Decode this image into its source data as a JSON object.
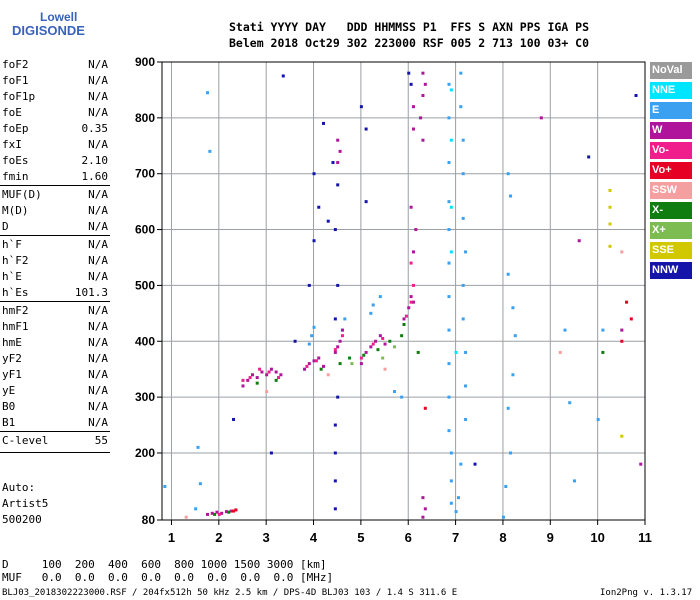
{
  "logo": {
    "line1": "Lowell",
    "line2": "DIGISONDE"
  },
  "header": {
    "line1": "Stati YYYY DAY   DDD HHMMSS P1  FFS S AXN PPS IGA PS",
    "line2": "Belem 2018 Oct29 302 223000 RSF 005 2 713 100 03+ C0"
  },
  "params": [
    {
      "name": "foF2",
      "value": "N/A"
    },
    {
      "name": "foF1",
      "value": "N/A"
    },
    {
      "name": "foF1p",
      "value": "N/A"
    },
    {
      "name": "foE",
      "value": "N/A"
    },
    {
      "name": "foEp",
      "value": "0.35"
    },
    {
      "name": "fxI",
      "value": "N/A"
    },
    {
      "name": "foEs",
      "value": "2.10"
    },
    {
      "name": "fmin",
      "value": "1.60"
    },
    {
      "name": "MUF(D)",
      "value": "N/A"
    },
    {
      "name": "M(D)",
      "value": "N/A"
    },
    {
      "name": "D",
      "value": "N/A"
    },
    {
      "name": "h`F",
      "value": "N/A"
    },
    {
      "name": "h`F2",
      "value": "N/A"
    },
    {
      "name": "h`E",
      "value": "N/A"
    },
    {
      "name": "h`Es",
      "value": "101.3"
    },
    {
      "name": "hmF2",
      "value": "N/A"
    },
    {
      "name": "hmF1",
      "value": "N/A"
    },
    {
      "name": "hmE",
      "value": "N/A"
    },
    {
      "name": "yF2",
      "value": "N/A"
    },
    {
      "name": "yF1",
      "value": "N/A"
    },
    {
      "name": "yE",
      "value": "N/A"
    },
    {
      "name": "B0",
      "value": "N/A"
    },
    {
      "name": "B1",
      "value": "N/A"
    },
    {
      "name": "C-level",
      "value": "55"
    }
  ],
  "auto": {
    "line1": "Auto:",
    "line2": "Artist5",
    "line3": "500200"
  },
  "mufTable": {
    "dLine": "D     100  200  400  600  800 1000 1500 3000 [km]",
    "mufLine": "MUF   0.0  0.0  0.0  0.0  0.0  0.0  0.0  0.0 [MHz]"
  },
  "footer": {
    "left": "BLJ03_2018302223000.RSF / 204fx512h 50 kHz 2.5 km / DPS-4D BLJ03 103 / 1.4 S 311.6 E",
    "right": "Ion2Png v. 1.3.17"
  },
  "legend": [
    {
      "label": "NoVal",
      "color": "#9a9a9a"
    },
    {
      "label": "NNE",
      "color": "#00e5ff"
    },
    {
      "label": "E",
      "color": "#3ca0f0"
    },
    {
      "label": "W",
      "color": "#b0149b"
    },
    {
      "label": "Vo-",
      "color": "#f01e8c"
    },
    {
      "label": "Vo+",
      "color": "#e60023"
    },
    {
      "label": "SSW",
      "color": "#f5a0a0"
    },
    {
      "label": "X-",
      "color": "#0f7d0f"
    },
    {
      "label": "X+",
      "color": "#7cbc50"
    },
    {
      "label": "SSE",
      "color": "#d2c800"
    },
    {
      "label": "NNW",
      "color": "#1414aa"
    }
  ],
  "chart_data": {
    "type": "scatter",
    "xlabel": "",
    "ylabel": "",
    "xlim": [
      0.8,
      11.0
    ],
    "ylim": [
      80,
      900
    ],
    "xticks": [
      1,
      2,
      3,
      4,
      5,
      6,
      7,
      8,
      9,
      10,
      11
    ],
    "yticks": [
      80,
      200,
      300,
      400,
      500,
      600,
      700,
      800,
      900
    ],
    "grid": true,
    "legend_position": "right",
    "series": [
      {
        "name": "NoVal",
        "color": "#9a9a9a",
        "points": []
      },
      {
        "name": "NNE",
        "color": "#00e5ff",
        "points": [
          [
            6.9,
            850
          ],
          [
            6.9,
            760
          ],
          [
            6.9,
            640
          ],
          [
            6.9,
            560
          ],
          [
            7.0,
            380
          ]
        ]
      },
      {
        "name": "E",
        "color": "#3ca0f0",
        "points": [
          [
            1.75,
            845
          ],
          [
            1.8,
            740
          ],
          [
            3.9,
            395
          ],
          [
            3.95,
            410
          ],
          [
            4.0,
            425
          ],
          [
            4.6,
            420
          ],
          [
            4.65,
            440
          ],
          [
            5.2,
            450
          ],
          [
            5.25,
            465
          ],
          [
            5.4,
            480
          ],
          [
            5.7,
            310
          ],
          [
            5.85,
            300
          ],
          [
            6.85,
            860
          ],
          [
            6.85,
            800
          ],
          [
            6.85,
            720
          ],
          [
            6.85,
            650
          ],
          [
            6.85,
            600
          ],
          [
            6.85,
            540
          ],
          [
            6.85,
            480
          ],
          [
            6.85,
            420
          ],
          [
            6.85,
            360
          ],
          [
            6.85,
            300
          ],
          [
            6.85,
            240
          ],
          [
            6.9,
            200
          ],
          [
            6.9,
            150
          ],
          [
            6.9,
            110
          ],
          [
            7.1,
            880
          ],
          [
            7.1,
            820
          ],
          [
            7.15,
            760
          ],
          [
            7.15,
            700
          ],
          [
            7.15,
            620
          ],
          [
            7.2,
            560
          ],
          [
            7.15,
            500
          ],
          [
            7.15,
            440
          ],
          [
            7.2,
            380
          ],
          [
            7.2,
            320
          ],
          [
            7.2,
            260
          ],
          [
            7.1,
            180
          ],
          [
            7.05,
            120
          ],
          [
            7.0,
            95
          ],
          [
            8.1,
            700
          ],
          [
            8.15,
            660
          ],
          [
            8.1,
            520
          ],
          [
            8.2,
            460
          ],
          [
            8.25,
            410
          ],
          [
            8.2,
            340
          ],
          [
            8.1,
            280
          ],
          [
            8.15,
            200
          ],
          [
            8.05,
            140
          ],
          [
            8.0,
            85
          ],
          [
            9.3,
            420
          ],
          [
            9.4,
            290
          ],
          [
            9.5,
            150
          ],
          [
            10.1,
            420
          ],
          [
            10.0,
            260
          ],
          [
            1.55,
            210
          ],
          [
            1.6,
            145
          ],
          [
            1.5,
            100
          ],
          [
            0.85,
            140
          ]
        ]
      },
      {
        "name": "W",
        "color": "#b0149b",
        "points": [
          [
            2.5,
            320
          ],
          [
            2.6,
            330
          ],
          [
            2.7,
            340
          ],
          [
            2.8,
            335
          ],
          [
            2.9,
            345
          ],
          [
            3.0,
            340
          ],
          [
            3.1,
            350
          ],
          [
            3.2,
            345
          ],
          [
            3.3,
            340
          ],
          [
            3.8,
            350
          ],
          [
            3.9,
            360
          ],
          [
            4.0,
            365
          ],
          [
            4.1,
            370
          ],
          [
            4.2,
            355
          ],
          [
            4.45,
            380
          ],
          [
            4.5,
            390
          ],
          [
            4.55,
            400
          ],
          [
            4.6,
            420
          ],
          [
            4.5,
            720
          ],
          [
            4.55,
            740
          ],
          [
            4.5,
            760
          ],
          [
            5.0,
            360
          ],
          [
            5.1,
            380
          ],
          [
            5.2,
            390
          ],
          [
            5.3,
            400
          ],
          [
            5.4,
            410
          ],
          [
            5.5,
            395
          ],
          [
            5.9,
            440
          ],
          [
            6.0,
            460
          ],
          [
            6.05,
            480
          ],
          [
            6.1,
            470
          ],
          [
            6.1,
            560
          ],
          [
            6.15,
            600
          ],
          [
            6.05,
            640
          ],
          [
            6.1,
            780
          ],
          [
            6.1,
            820
          ],
          [
            6.3,
            880
          ],
          [
            6.35,
            860
          ],
          [
            6.3,
            840
          ],
          [
            6.25,
            800
          ],
          [
            6.3,
            760
          ],
          [
            6.3,
            120
          ],
          [
            6.35,
            100
          ],
          [
            6.3,
            85
          ],
          [
            1.75,
            90
          ],
          [
            1.85,
            92
          ],
          [
            1.95,
            94
          ],
          [
            2.05,
            92
          ],
          [
            2.15,
            95
          ],
          [
            2.25,
            96
          ],
          [
            8.8,
            800
          ],
          [
            9.6,
            580
          ],
          [
            10.5,
            420
          ],
          [
            10.9,
            180
          ]
        ]
      },
      {
        "name": "Vo-",
        "color": "#f01e8c",
        "points": [
          [
            2.5,
            330
          ],
          [
            2.65,
            335
          ],
          [
            2.85,
            350
          ],
          [
            3.05,
            345
          ],
          [
            3.25,
            335
          ],
          [
            3.85,
            355
          ],
          [
            4.05,
            365
          ],
          [
            4.45,
            385
          ],
          [
            4.6,
            410
          ],
          [
            5.0,
            370
          ],
          [
            5.25,
            395
          ],
          [
            5.45,
            405
          ],
          [
            5.95,
            445
          ],
          [
            6.05,
            470
          ],
          [
            6.1,
            500
          ],
          [
            6.05,
            540
          ],
          [
            2.0,
            90
          ]
        ]
      },
      {
        "name": "Vo+",
        "color": "#e60023",
        "points": [
          [
            2.3,
            96
          ],
          [
            2.35,
            98
          ],
          [
            10.6,
            470
          ],
          [
            10.7,
            440
          ],
          [
            10.5,
            400
          ],
          [
            6.35,
            280
          ]
        ]
      },
      {
        "name": "SSW",
        "color": "#f5a0a0",
        "points": [
          [
            1.3,
            85
          ],
          [
            3.0,
            310
          ],
          [
            4.3,
            340
          ],
          [
            5.5,
            350
          ],
          [
            9.2,
            380
          ],
          [
            10.5,
            560
          ]
        ]
      },
      {
        "name": "X-",
        "color": "#0f7d0f",
        "points": [
          [
            2.8,
            325
          ],
          [
            3.2,
            330
          ],
          [
            4.15,
            350
          ],
          [
            4.55,
            360
          ],
          [
            4.75,
            370
          ],
          [
            5.05,
            375
          ],
          [
            5.35,
            385
          ],
          [
            5.6,
            400
          ],
          [
            5.85,
            410
          ],
          [
            5.9,
            430
          ],
          [
            6.2,
            380
          ],
          [
            2.2,
            94
          ],
          [
            1.9,
            90
          ],
          [
            10.1,
            380
          ]
        ]
      },
      {
        "name": "X+",
        "color": "#7cbc50",
        "points": [
          [
            4.8,
            360
          ],
          [
            5.45,
            370
          ],
          [
            5.7,
            390
          ]
        ]
      },
      {
        "name": "SSE",
        "color": "#d2c800",
        "points": [
          [
            10.25,
            670
          ],
          [
            10.25,
            640
          ],
          [
            10.25,
            610
          ],
          [
            10.25,
            570
          ],
          [
            10.5,
            230
          ]
        ]
      },
      {
        "name": "NNW",
        "color": "#1414aa",
        "points": [
          [
            3.35,
            875
          ],
          [
            4.2,
            790
          ],
          [
            4.0,
            700
          ],
          [
            4.1,
            640
          ],
          [
            4.3,
            615
          ],
          [
            4.0,
            580
          ],
          [
            3.9,
            500
          ],
          [
            3.6,
            400
          ],
          [
            3.1,
            200
          ],
          [
            2.3,
            260
          ],
          [
            5.0,
            820
          ],
          [
            5.1,
            780
          ],
          [
            5.1,
            650
          ],
          [
            4.4,
            720
          ],
          [
            4.5,
            680
          ],
          [
            4.45,
            600
          ],
          [
            4.5,
            500
          ],
          [
            4.45,
            440
          ],
          [
            4.5,
            300
          ],
          [
            4.45,
            250
          ],
          [
            4.45,
            200
          ],
          [
            4.45,
            150
          ],
          [
            4.45,
            100
          ],
          [
            6.0,
            880
          ],
          [
            6.05,
            860
          ],
          [
            9.8,
            730
          ],
          [
            10.8,
            840
          ],
          [
            7.4,
            180
          ]
        ]
      }
    ]
  }
}
